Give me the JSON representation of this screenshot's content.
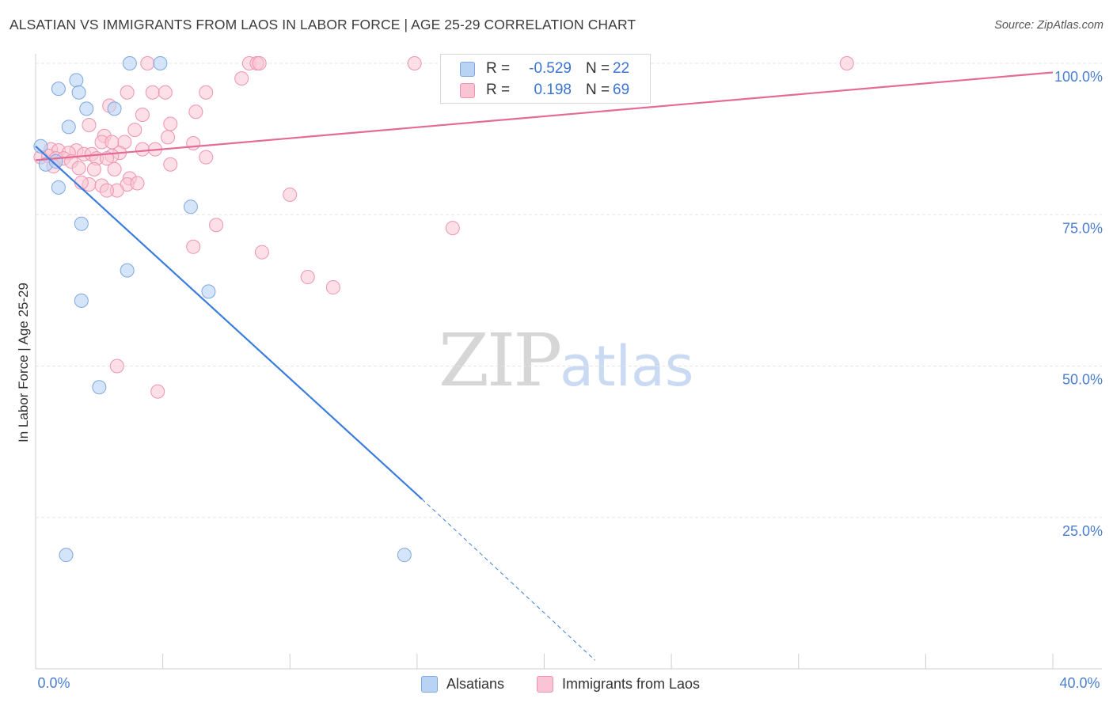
{
  "header": {
    "title": "ALSATIAN VS IMMIGRANTS FROM LAOS IN LABOR FORCE | AGE 25-29 CORRELATION CHART",
    "source": "Source: ZipAtlas.com"
  },
  "watermark": {
    "zip": "ZIP",
    "atlas": "atlas"
  },
  "legend_top": {
    "rows": [
      {
        "r_label": "R =",
        "r_value": "-0.529",
        "n_label": "N =",
        "n_value": "22"
      },
      {
        "r_label": "R =",
        "r_value": "0.198",
        "n_label": "N =",
        "n_value": "69"
      }
    ]
  },
  "legend_bottom": {
    "series1": "Alsatians",
    "series2": "Immigrants from Laos"
  },
  "colors": {
    "blue_fill": "#b9d3f5",
    "blue_stroke": "#7fa7de",
    "blue_line": "#3b7ddd",
    "pink_fill": "#f9c4d4",
    "pink_stroke": "#ef93b0",
    "pink_line": "#e36b96",
    "tick_label": "#4a7ed0",
    "grid": "#e6e6e6"
  },
  "chart_data": {
    "type": "scatter",
    "title": "ALSATIAN VS IMMIGRANTS FROM LAOS IN LABOR FORCE | AGE 25-29 CORRELATION CHART",
    "xlabel": "",
    "ylabel": "In Labor Force | Age 25-29",
    "xlim": [
      0,
      40
    ],
    "ylim": [
      0,
      100
    ],
    "x_tick_labels": [
      {
        "value": 0,
        "label": "0.0%"
      },
      {
        "value": 40,
        "label": "40.0%"
      }
    ],
    "y_tick_labels": [
      {
        "value": 100,
        "label": "100.0%"
      },
      {
        "value": 75,
        "label": "75.0%"
      },
      {
        "value": 50,
        "label": "50.0%"
      },
      {
        "value": 25,
        "label": "25.0%"
      }
    ],
    "grid": true,
    "legend": "bottom-center",
    "series": [
      {
        "name": "Alsatians",
        "color": "#b9d3f5",
        "r": -0.529,
        "n": 22,
        "trend": {
          "x0": 0,
          "y0": 86.3,
          "x1": 15.2,
          "y1": 28.0,
          "dash_to_x": 22,
          "dash_to_y": 1.4
        },
        "points": [
          [
            3.7,
            100
          ],
          [
            4.9,
            100
          ],
          [
            1.6,
            97.2
          ],
          [
            0.9,
            95.8
          ],
          [
            1.7,
            95.2
          ],
          [
            2.0,
            92.5
          ],
          [
            3.1,
            92.5
          ],
          [
            1.3,
            89.5
          ],
          [
            0.2,
            86.3
          ],
          [
            0.4,
            83.3
          ],
          [
            0.8,
            83.8
          ],
          [
            0.9,
            79.5
          ],
          [
            1.8,
            73.5
          ],
          [
            6.1,
            76.3
          ],
          [
            3.6,
            65.8
          ],
          [
            1.8,
            60.8
          ],
          [
            6.8,
            62.3
          ],
          [
            2.5,
            46.5
          ],
          [
            1.2,
            18.8
          ],
          [
            14.5,
            18.8
          ]
        ]
      },
      {
        "name": "Immigrants from Laos",
        "color": "#f9c4d4",
        "r": 0.198,
        "n": 69,
        "trend": {
          "x0": 0,
          "y0": 84.0,
          "x1": 40,
          "y1": 98.5
        },
        "points": [
          [
            4.4,
            100
          ],
          [
            8.4,
            100
          ],
          [
            8.7,
            100
          ],
          [
            8.8,
            100
          ],
          [
            14.9,
            100
          ],
          [
            31.9,
            100
          ],
          [
            8.1,
            97.5
          ],
          [
            3.6,
            95.2
          ],
          [
            4.6,
            95.2
          ],
          [
            5.1,
            95.2
          ],
          [
            6.7,
            95.2
          ],
          [
            2.9,
            93.0
          ],
          [
            4.2,
            91.5
          ],
          [
            6.3,
            92.0
          ],
          [
            5.3,
            90.0
          ],
          [
            3.9,
            89.0
          ],
          [
            2.1,
            89.8
          ],
          [
            2.7,
            88.0
          ],
          [
            5.2,
            87.8
          ],
          [
            2.6,
            87.0
          ],
          [
            3.0,
            87.0
          ],
          [
            3.5,
            87.0
          ],
          [
            6.2,
            86.8
          ],
          [
            4.2,
            85.8
          ],
          [
            4.7,
            85.8
          ],
          [
            3.3,
            85.2
          ],
          [
            3.0,
            84.7
          ],
          [
            0.6,
            85.8
          ],
          [
            0.9,
            85.6
          ],
          [
            1.6,
            85.6
          ],
          [
            1.3,
            85.2
          ],
          [
            1.9,
            85.0
          ],
          [
            2.2,
            85.0
          ],
          [
            0.2,
            84.5
          ],
          [
            0.5,
            84.7
          ],
          [
            0.8,
            84.3
          ],
          [
            1.1,
            84.3
          ],
          [
            2.4,
            84.3
          ],
          [
            2.8,
            84.3
          ],
          [
            6.7,
            84.5
          ],
          [
            1.4,
            83.8
          ],
          [
            5.3,
            83.3
          ],
          [
            0.7,
            83.0
          ],
          [
            1.7,
            82.7
          ],
          [
            2.3,
            82.5
          ],
          [
            3.1,
            82.5
          ],
          [
            3.7,
            81.0
          ],
          [
            3.6,
            80.0
          ],
          [
            4.0,
            80.2
          ],
          [
            2.1,
            80.0
          ],
          [
            1.8,
            80.3
          ],
          [
            2.6,
            79.8
          ],
          [
            3.2,
            79.0
          ],
          [
            2.8,
            79.0
          ],
          [
            10.0,
            78.3
          ],
          [
            7.1,
            73.3
          ],
          [
            16.4,
            72.8
          ],
          [
            6.2,
            69.7
          ],
          [
            8.9,
            68.8
          ],
          [
            10.7,
            64.7
          ],
          [
            11.7,
            63.0
          ],
          [
            3.2,
            50.0
          ],
          [
            4.8,
            45.8
          ]
        ]
      }
    ]
  }
}
